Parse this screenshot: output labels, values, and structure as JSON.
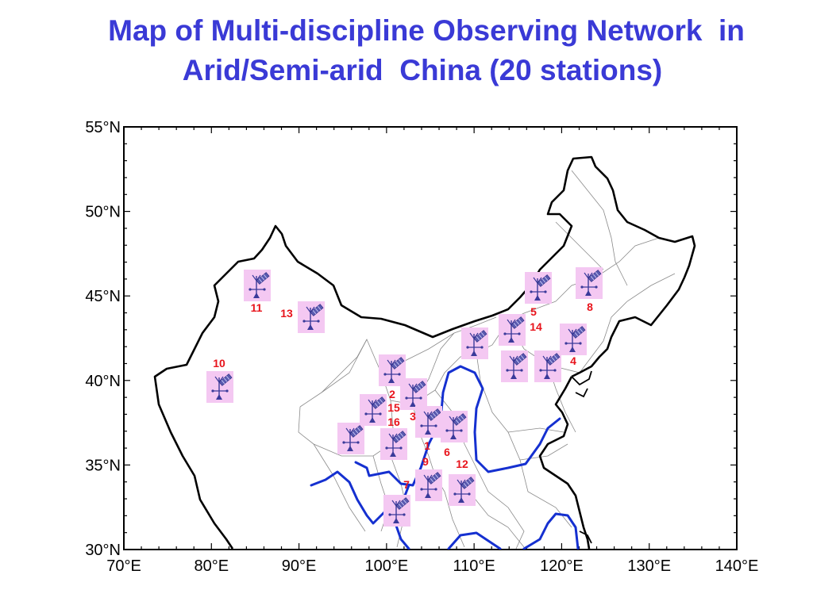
{
  "title": {
    "line1": "Map of Multi-discipline Observing Network  in",
    "line2": "Arid/Semi-arid  China (20 stations)"
  },
  "axes": {
    "lat_labels": [
      "55°N",
      "50°N",
      "45°N",
      "40°N",
      "35°N",
      "30°N"
    ],
    "lon_labels": [
      "70°E",
      "80°E",
      "90°E",
      "100°E",
      "110°E",
      "120°E",
      "130°E",
      "140°E"
    ],
    "lat_range": [
      30,
      55
    ],
    "lon_range": [
      70,
      140
    ]
  },
  "colors": {
    "title": "#3a3ad6",
    "station_label": "#e8141c",
    "station_icon_bg": "#f4c8f2",
    "river": "#1530d0",
    "border": "#000000",
    "province": "#8a8a8a"
  },
  "station_icon": "antenna-satellite-icon",
  "station_labels": [
    "11",
    "13",
    "10",
    "5",
    "14",
    "8",
    "4",
    "2",
    "15",
    "16",
    "3",
    "1",
    "9",
    "6",
    "12",
    "7"
  ],
  "station_icon_count": 20
}
